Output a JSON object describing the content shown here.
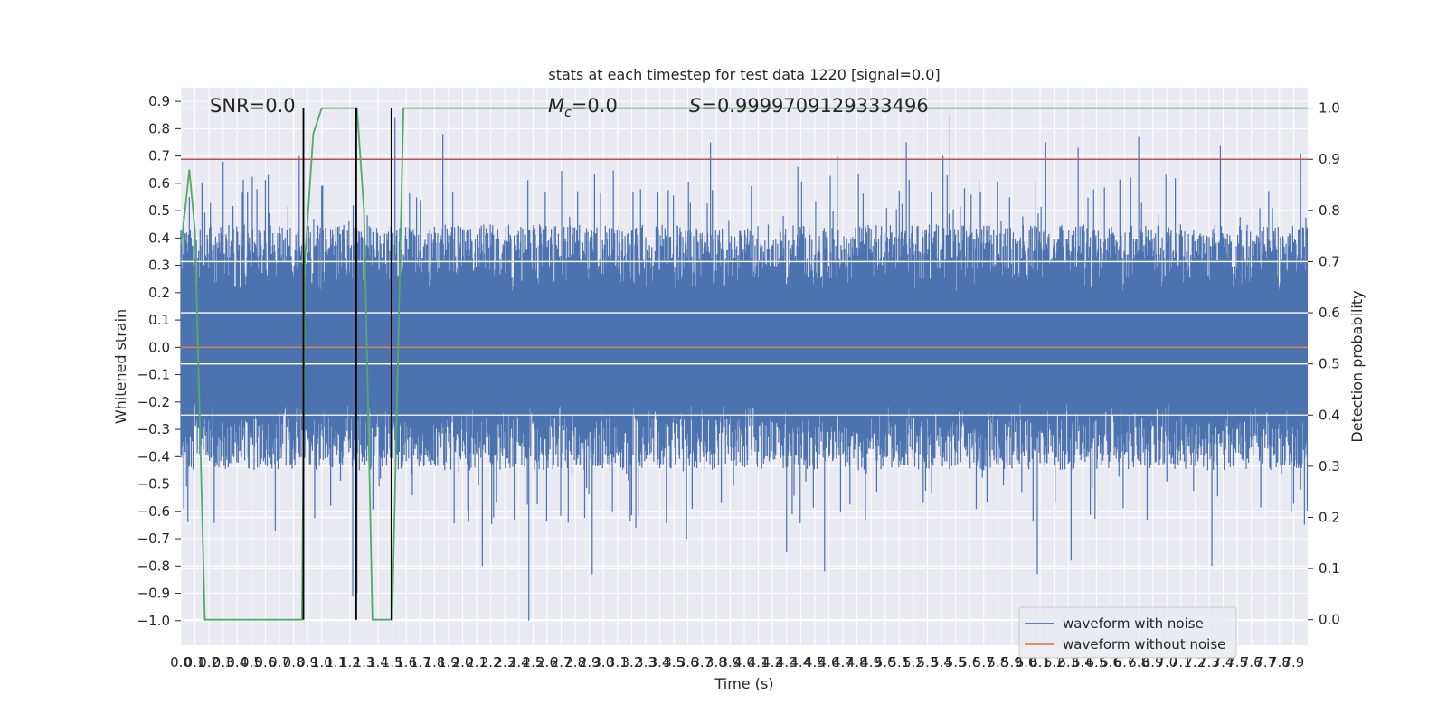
{
  "chart_data": {
    "type": "line",
    "title": "stats at each timestep for test data 1220 [signal=0.0]",
    "xlabel": "Time (s)",
    "ylabel": "Whitened strain",
    "ylabel_right": "Detection probability",
    "xlim": [
      0,
      8
    ],
    "ylim": [
      -1.09,
      0.95
    ],
    "ylim_right": [
      -0.05,
      1.04
    ],
    "grid": true,
    "x_ticks": [
      0.0,
      0.1,
      0.2,
      0.3,
      0.4,
      0.5,
      0.6,
      0.7,
      0.8,
      0.9,
      1.0,
      1.1,
      1.2,
      1.3,
      1.4,
      1.5,
      1.6,
      1.7,
      1.8,
      1.9,
      2.0,
      2.1,
      2.2,
      2.3,
      2.4,
      2.5,
      2.6,
      2.7,
      2.8,
      2.9,
      3.0,
      3.1,
      3.2,
      3.3,
      3.4,
      3.5,
      3.6,
      3.7,
      3.8,
      3.9,
      4.0,
      4.1,
      4.2,
      4.3,
      4.4,
      4.5,
      4.6,
      4.7,
      4.8,
      4.9,
      5.0,
      5.1,
      5.2,
      5.3,
      5.4,
      5.5,
      5.6,
      5.7,
      5.8,
      5.9,
      6.0,
      6.1,
      6.2,
      6.3,
      6.4,
      6.5,
      6.6,
      6.7,
      6.8,
      6.9,
      7.0,
      7.1,
      7.2,
      7.3,
      7.4,
      7.5,
      7.6,
      7.7,
      7.8,
      7.9
    ],
    "x_tick_labels": [
      "0.0",
      "0.1",
      "0.2",
      "0.3",
      "0.4",
      "0.5",
      "0.6",
      "0.7",
      "0.8",
      "0.9",
      "1.0",
      "1.1",
      "1.2",
      "1.3",
      "1.4",
      "1.5",
      "1.6",
      "1.7",
      "1.8",
      "1.9",
      "2.0",
      "2.1",
      "2.2",
      "2.3",
      "2.4",
      "2.5",
      "2.6",
      "2.7",
      "2.8",
      "2.9",
      "3.0",
      "3.1",
      "3.2",
      "3.3",
      "3.4",
      "3.5",
      "3.6",
      "3.7",
      "3.8",
      "3.9",
      "4.0",
      "4.1",
      "4.2",
      "4.3",
      "4.4",
      "4.5",
      "4.6",
      "4.7",
      "4.8",
      "4.9",
      "5.0",
      "5.1",
      "5.2",
      "5.3",
      "5.4",
      "5.5",
      "5.6",
      "5.7",
      "5.8",
      "5.9",
      "6.0",
      "6.1",
      "6.2",
      "6.3",
      "6.4",
      "6.5",
      "6.6",
      "6.7",
      "6.8",
      "6.9",
      "7.0",
      "7.1",
      "7.2",
      "7.3",
      "7.4",
      "7.5",
      "7.6",
      "7.7",
      "7.8",
      "7.9"
    ],
    "y_ticks": [
      0.9,
      0.8,
      0.7,
      0.6,
      0.5,
      0.4,
      0.3,
      0.2,
      0.1,
      0.0,
      -0.1,
      -0.2,
      -0.3,
      -0.4,
      -0.5,
      -0.6,
      -0.7,
      -0.8,
      -0.9,
      -1.0
    ],
    "y_tick_labels": [
      "0.9",
      "0.8",
      "0.7",
      "0.6",
      "0.5",
      "0.4",
      "0.3",
      "0.2",
      "0.1",
      "0.0",
      "−0.1",
      "−0.2",
      "−0.3",
      "−0.4",
      "−0.5",
      "−0.6",
      "−0.7",
      "−0.8",
      "−0.9",
      "−1.0"
    ],
    "y_right_ticks": [
      1.0,
      0.9,
      0.8,
      0.7,
      0.6,
      0.5,
      0.4,
      0.3,
      0.2,
      0.1,
      0.0
    ],
    "y_right_tick_labels": [
      "1.0",
      "0.9",
      "0.8",
      "0.7",
      "0.6",
      "0.5",
      "0.4",
      "0.3",
      "0.2",
      "0.1",
      "0.0"
    ],
    "annotations": {
      "snr": "SNR=0.0",
      "mc_symbol": "M",
      "mc_sub": "c",
      "mc_value": "=0.0",
      "s_symbol": "S",
      "s_value": "=0.9999709129333496"
    },
    "series": [
      {
        "name": "waveform with noise",
        "color": "#4c72b0",
        "description_values": {
          "typical_min": -0.45,
          "typical_max": 0.45,
          "peak_max": 0.85,
          "peak_min": -1.0
        },
        "notable_peaks": [
          [
            0.02,
            0.48
          ],
          [
            0.06,
            0.55
          ],
          [
            0.15,
            0.6
          ],
          [
            0.3,
            0.68
          ],
          [
            0.62,
            0.63
          ],
          [
            0.84,
            0.7
          ],
          [
            1.0,
            0.59
          ],
          [
            1.52,
            0.84
          ],
          [
            1.86,
            0.78
          ],
          [
            3.76,
            0.75
          ],
          [
            4.38,
            0.66
          ],
          [
            4.66,
            0.7
          ],
          [
            5.15,
            0.75
          ],
          [
            5.41,
            0.7
          ],
          [
            5.46,
            0.85
          ],
          [
            6.14,
            0.75
          ],
          [
            6.37,
            0.73
          ],
          [
            6.8,
            0.77
          ],
          [
            7.38,
            0.74
          ],
          [
            7.95,
            0.71
          ]
        ],
        "notable_troughs": [
          [
            0.05,
            -0.64
          ],
          [
            0.67,
            -0.67
          ],
          [
            0.87,
            -0.87
          ],
          [
            1.22,
            -0.91
          ],
          [
            1.25,
            -0.9
          ],
          [
            2.14,
            -0.8
          ],
          [
            2.47,
            -1.0
          ],
          [
            2.92,
            -0.83
          ],
          [
            3.23,
            -0.66
          ],
          [
            3.59,
            -0.7
          ],
          [
            4.3,
            -0.75
          ],
          [
            4.57,
            -0.82
          ],
          [
            6.08,
            -0.83
          ],
          [
            6.32,
            -0.78
          ],
          [
            7.32,
            -0.8
          ]
        ]
      },
      {
        "name": "waveform without noise",
        "color": "#dd8452",
        "y_constant": 0.0
      },
      {
        "name": "",
        "color": "#55a868",
        "axis": "right",
        "x": [
          0.0,
          0.03,
          0.06,
          0.1,
          0.17,
          0.24,
          0.4,
          0.6,
          0.8,
          0.86,
          0.88,
          0.94,
          1.0,
          1.1,
          1.25,
          1.3,
          1.36,
          1.44,
          1.5,
          1.58,
          1.9,
          3.0,
          5.0,
          8.0
        ],
        "y": [
          0.73,
          0.8,
          0.88,
          0.76,
          0.0,
          0.0,
          0.0,
          0.0,
          0.0,
          0.0,
          0.7,
          0.95,
          1.0,
          1.0,
          1.0,
          0.8,
          0.0,
          0.0,
          0.0,
          1.0,
          1.0,
          1.0,
          1.0,
          1.0
        ]
      }
    ],
    "hlines_right": [
      {
        "y": 0.9,
        "color": "#c44e52"
      }
    ],
    "vlines": [
      {
        "x": 0.87,
        "color": "#000000"
      },
      {
        "x": 1.245,
        "color": "#000000"
      },
      {
        "x": 1.495,
        "color": "#000000"
      }
    ],
    "legend": {
      "placement": "lower-right",
      "entries": [
        {
          "label": "waveform with noise",
          "color": "#4c72b0"
        },
        {
          "label": "waveform without noise",
          "color": "#dd8452"
        }
      ]
    },
    "colors": {
      "background": "#eaeaf2",
      "grid": "#ffffff",
      "text": "#262626"
    }
  }
}
